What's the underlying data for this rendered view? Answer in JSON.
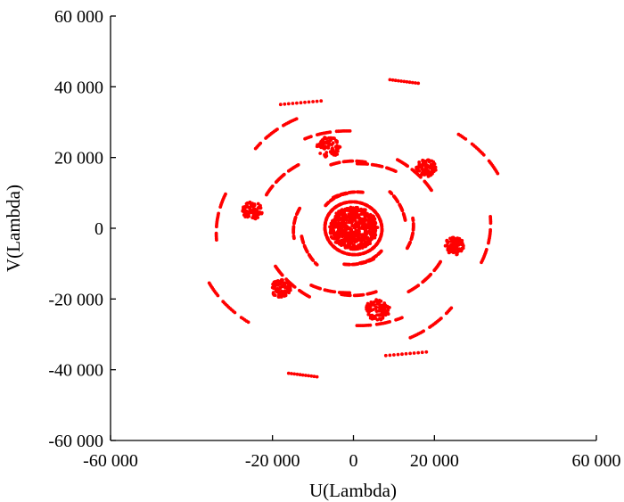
{
  "chart_data": {
    "type": "scatter",
    "title": "",
    "xlabel": "U(Lambda)",
    "ylabel": "V(Lambda)",
    "xlim": [
      -60000,
      60000
    ],
    "ylim": [
      -60000,
      60000
    ],
    "grid": false,
    "legend": "none",
    "x_ticks": [
      -60000,
      -20000,
      0,
      20000,
      60000
    ],
    "x_tick_labels": [
      "-60 000",
      "-20 000",
      "0",
      "20 000",
      "60 000"
    ],
    "y_ticks": [
      60000,
      40000,
      20000,
      0,
      -20000,
      -40000,
      -60000
    ],
    "y_tick_labels": [
      "60 000",
      "40 000",
      "20 000",
      "0",
      "-20 000",
      "-40 000",
      "-60 000"
    ],
    "series": [
      {
        "color": "#ff0000",
        "description_of_tracks": "uv-coverage arcs, point-symmetric",
        "arcs": [
          {
            "cx": 0,
            "cy": 0,
            "rx": 39000,
            "ry": 33000,
            "rot": 15,
            "start": 190,
            "end": 215
          },
          {
            "cx": 0,
            "cy": 0,
            "rx": 39000,
            "ry": 33000,
            "rot": 15,
            "start": 10,
            "end": 35
          },
          {
            "cx": 0,
            "cy": 0,
            "rx": 34000,
            "ry": 30000,
            "rot": 10,
            "start": 150,
            "end": 175
          },
          {
            "cx": 0,
            "cy": 0,
            "rx": 34000,
            "ry": 30000,
            "rot": 10,
            "start": 330,
            "end": 355
          },
          {
            "cx": 0,
            "cy": 0,
            "rx": 30000,
            "ry": 34000,
            "rot": 20,
            "start": 95,
            "end": 120
          },
          {
            "cx": 0,
            "cy": 0,
            "rx": 30000,
            "ry": 34000,
            "rot": 20,
            "start": 275,
            "end": 300
          },
          {
            "cx": 0,
            "cy": 0,
            "rx": 26000,
            "ry": 28000,
            "rot": 30,
            "start": 60,
            "end": 85
          },
          {
            "cx": 0,
            "cy": 0,
            "rx": 26000,
            "ry": 28000,
            "rot": 30,
            "start": 240,
            "end": 265
          },
          {
            "cx": 0,
            "cy": 0,
            "rx": 24000,
            "ry": 22000,
            "rot": 5,
            "start": 120,
            "end": 150
          },
          {
            "cx": 0,
            "cy": 0,
            "rx": 24000,
            "ry": 22000,
            "rot": 5,
            "start": 300,
            "end": 330
          },
          {
            "cx": 0,
            "cy": 0,
            "rx": 22000,
            "ry": 24000,
            "rot": 40,
            "start": 170,
            "end": 200
          },
          {
            "cx": 0,
            "cy": 0,
            "rx": 22000,
            "ry": 24000,
            "rot": 40,
            "start": 350,
            "end": 380
          },
          {
            "cx": 0,
            "cy": 0,
            "rx": 20000,
            "ry": 18000,
            "rot": 20,
            "start": 40,
            "end": 70
          },
          {
            "cx": 0,
            "cy": 0,
            "rx": 20000,
            "ry": 18000,
            "rot": 20,
            "start": 220,
            "end": 250
          },
          {
            "cx": 0,
            "cy": 0,
            "rx": 17000,
            "ry": 19000,
            "rot": 0,
            "start": 80,
            "end": 110
          },
          {
            "cx": 0,
            "cy": 0,
            "rx": 17000,
            "ry": 19000,
            "rot": 0,
            "start": 260,
            "end": 290
          },
          {
            "cx": 0,
            "cy": 0,
            "rx": 15000,
            "ry": 14000,
            "rot": 25,
            "start": 130,
            "end": 165
          },
          {
            "cx": 0,
            "cy": 0,
            "rx": 15000,
            "ry": 14000,
            "rot": 25,
            "start": 310,
            "end": 345
          },
          {
            "cx": 0,
            "cy": 0,
            "rx": 13000,
            "ry": 15000,
            "rot": 10,
            "start": 0,
            "end": 35
          },
          {
            "cx": 0,
            "cy": 0,
            "rx": 13000,
            "ry": 15000,
            "rot": 10,
            "start": 180,
            "end": 215
          },
          {
            "cx": 0,
            "cy": 0,
            "rx": 11000,
            "ry": 10000,
            "rot": 30,
            "start": 50,
            "end": 90
          },
          {
            "cx": 0,
            "cy": 0,
            "rx": 11000,
            "ry": 10000,
            "rot": 30,
            "start": 230,
            "end": 270
          },
          {
            "cx": 0,
            "cy": 0,
            "rx": 9000,
            "ry": 10000,
            "rot": 0,
            "start": 100,
            "end": 140
          },
          {
            "cx": 0,
            "cy": 0,
            "rx": 9000,
            "ry": 10000,
            "rot": 0,
            "start": 280,
            "end": 320
          },
          {
            "cx": 0,
            "cy": 0,
            "rx": 7000,
            "ry": 7500,
            "rot": 15,
            "start": 0,
            "end": 360
          },
          {
            "cx": 0,
            "cy": 0,
            "rx": 5000,
            "ry": 5500,
            "rot": 15,
            "start": 0,
            "end": 360
          },
          {
            "cx": 0,
            "cy": 0,
            "rx": 3000,
            "ry": 3500,
            "rot": 15,
            "start": 0,
            "end": 360
          }
        ],
        "clusters": [
          {
            "x": -6000,
            "y": 23000,
            "spread": 3000
          },
          {
            "x": 6000,
            "y": -23000,
            "spread": 3000
          },
          {
            "x": 18000,
            "y": 17000,
            "spread": 2500
          },
          {
            "x": -18000,
            "y": -17000,
            "spread": 2500
          },
          {
            "x": 25000,
            "y": -5000,
            "spread": 2500
          },
          {
            "x": -25000,
            "y": 5000,
            "spread": 2500
          },
          {
            "x": 0,
            "y": 0,
            "spread": 6000
          }
        ],
        "outer_tracks": [
          {
            "x1": 9000,
            "y1": 42000,
            "x2": 16000,
            "y2": 41000
          },
          {
            "x1": -9000,
            "y1": -42000,
            "x2": -16000,
            "y2": -41000
          },
          {
            "x1": -18000,
            "y1": 35000,
            "x2": -8000,
            "y2": 36000
          },
          {
            "x1": 18000,
            "y1": -35000,
            "x2": 8000,
            "y2": -36000
          }
        ]
      }
    ]
  }
}
